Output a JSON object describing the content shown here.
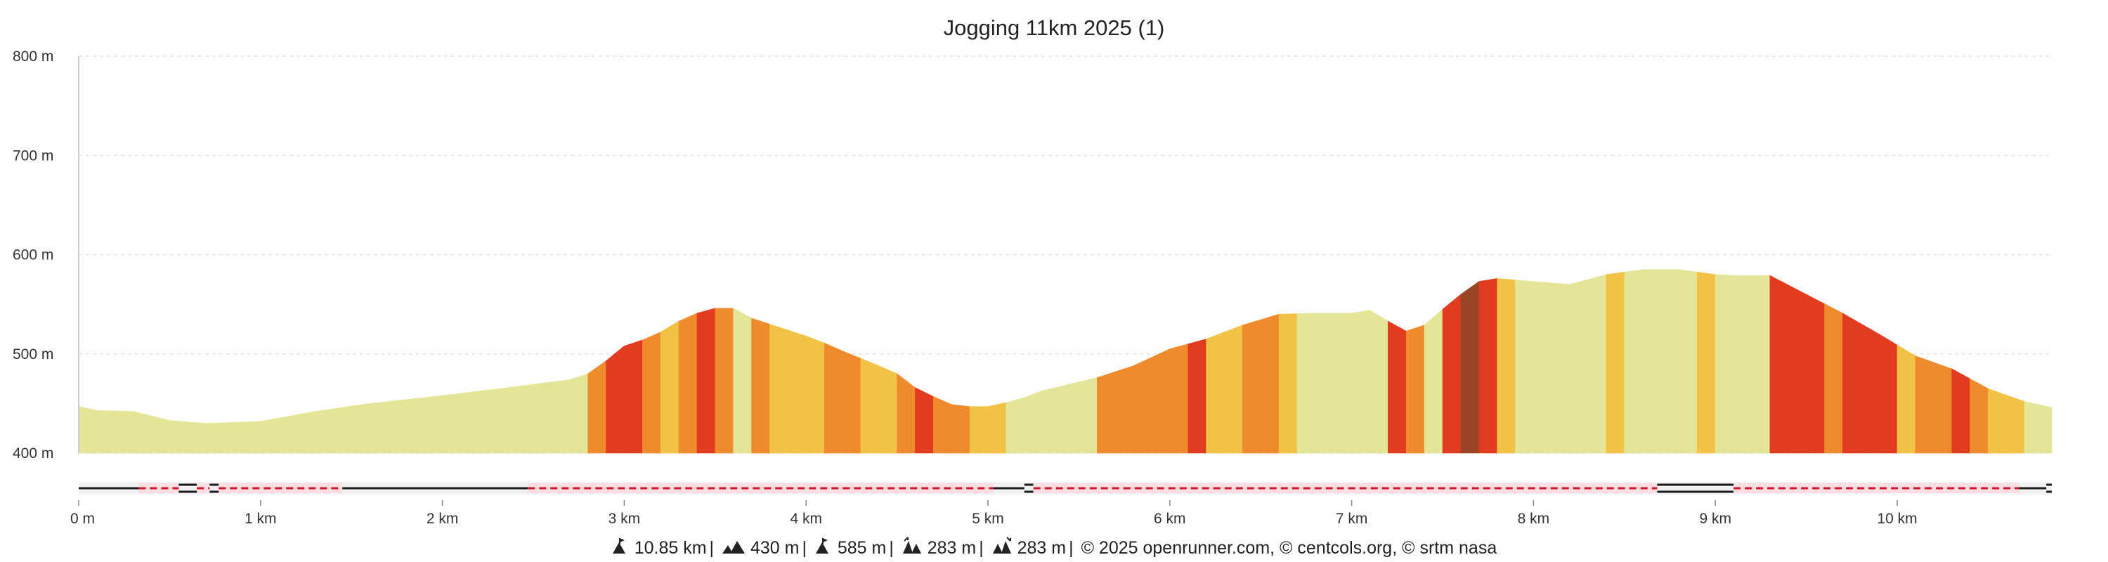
{
  "chart_data": {
    "type": "area",
    "title": "Jogging 11km 2025 (1)",
    "y_ticks": [
      "400 m",
      "500 m",
      "600 m",
      "700 m",
      "800 m"
    ],
    "x_ticks": [
      "0 m",
      "1 km",
      "2 km",
      "3 km",
      "4 km",
      "5 km",
      "6 km",
      "7 km",
      "8 km",
      "9 km",
      "10 km"
    ],
    "ylim": [
      400,
      800
    ],
    "xlim": [
      0,
      10.85
    ],
    "x_unit": "km",
    "y_unit": "m",
    "grid": true,
    "profile": {
      "x": [
        0,
        0.1,
        0.3,
        0.5,
        0.7,
        1.0,
        1.3,
        1.6,
        2.0,
        2.4,
        2.7,
        2.8,
        2.9,
        3.0,
        3.1,
        3.2,
        3.3,
        3.4,
        3.5,
        3.6,
        3.7,
        3.8,
        3.9,
        4.0,
        4.1,
        4.2,
        4.4,
        4.5,
        4.6,
        4.7,
        4.8,
        4.9,
        5.0,
        5.1,
        5.2,
        5.3,
        5.6,
        5.8,
        6.0,
        6.2,
        6.4,
        6.6,
        6.8,
        7.0,
        7.1,
        7.2,
        7.3,
        7.4,
        7.5,
        7.6,
        7.7,
        7.8,
        8.0,
        8.2,
        8.4,
        8.6,
        8.8,
        9.0,
        9.1,
        9.3,
        9.5,
        9.7,
        9.9,
        10.1,
        10.3,
        10.5,
        10.7,
        10.85
      ],
      "elevation": [
        447,
        443,
        442,
        433,
        430,
        432,
        442,
        450,
        458,
        467,
        474,
        480,
        493,
        508,
        514,
        522,
        533,
        541,
        546,
        546,
        536,
        530,
        524,
        518,
        511,
        503,
        488,
        480,
        466,
        457,
        449,
        447,
        447,
        451,
        456,
        463,
        476,
        488,
        505,
        515,
        529,
        540,
        541,
        541,
        544,
        533,
        523,
        529,
        545,
        560,
        573,
        576,
        573,
        570,
        580,
        585,
        585,
        580,
        579,
        579,
        560,
        541,
        520,
        498,
        485,
        465,
        452,
        446
      ]
    },
    "slope_colors": {
      "flat": "#e5e597",
      "gentle": "#f2c244",
      "moderate": "#ef8b2c",
      "steep": "#e33b20",
      "very_steep": "#9a4626"
    },
    "slope_segments": [
      {
        "from": 0,
        "to": 2.8,
        "class": "flat"
      },
      {
        "from": 2.8,
        "to": 2.9,
        "class": "moderate"
      },
      {
        "from": 2.9,
        "to": 3.1,
        "class": "steep"
      },
      {
        "from": 3.1,
        "to": 3.2,
        "class": "moderate"
      },
      {
        "from": 3.2,
        "to": 3.3,
        "class": "gentle"
      },
      {
        "from": 3.3,
        "to": 3.4,
        "class": "moderate"
      },
      {
        "from": 3.4,
        "to": 3.5,
        "class": "steep"
      },
      {
        "from": 3.5,
        "to": 3.6,
        "class": "moderate"
      },
      {
        "from": 3.6,
        "to": 3.7,
        "class": "flat"
      },
      {
        "from": 3.7,
        "to": 3.8,
        "class": "moderate"
      },
      {
        "from": 3.8,
        "to": 4.1,
        "class": "gentle"
      },
      {
        "from": 4.1,
        "to": 4.3,
        "class": "moderate"
      },
      {
        "from": 4.3,
        "to": 4.5,
        "class": "gentle"
      },
      {
        "from": 4.5,
        "to": 4.6,
        "class": "moderate"
      },
      {
        "from": 4.6,
        "to": 4.7,
        "class": "steep"
      },
      {
        "from": 4.7,
        "to": 4.9,
        "class": "moderate"
      },
      {
        "from": 4.9,
        "to": 5.1,
        "class": "gentle"
      },
      {
        "from": 5.1,
        "to": 5.6,
        "class": "flat"
      },
      {
        "from": 5.6,
        "to": 6.1,
        "class": "moderate"
      },
      {
        "from": 6.1,
        "to": 6.2,
        "class": "steep"
      },
      {
        "from": 6.2,
        "to": 6.4,
        "class": "gentle"
      },
      {
        "from": 6.4,
        "to": 6.6,
        "class": "moderate"
      },
      {
        "from": 6.6,
        "to": 6.7,
        "class": "gentle"
      },
      {
        "from": 6.7,
        "to": 7.2,
        "class": "flat"
      },
      {
        "from": 7.2,
        "to": 7.3,
        "class": "steep"
      },
      {
        "from": 7.3,
        "to": 7.4,
        "class": "moderate"
      },
      {
        "from": 7.4,
        "to": 7.5,
        "class": "flat"
      },
      {
        "from": 7.5,
        "to": 7.6,
        "class": "steep"
      },
      {
        "from": 7.6,
        "to": 7.7,
        "class": "very_steep"
      },
      {
        "from": 7.7,
        "to": 7.8,
        "class": "steep"
      },
      {
        "from": 7.8,
        "to": 7.9,
        "class": "gentle"
      },
      {
        "from": 7.9,
        "to": 8.4,
        "class": "flat"
      },
      {
        "from": 8.4,
        "to": 8.5,
        "class": "gentle"
      },
      {
        "from": 8.5,
        "to": 8.9,
        "class": "flat"
      },
      {
        "from": 8.9,
        "to": 9.0,
        "class": "gentle"
      },
      {
        "from": 9.0,
        "to": 9.3,
        "class": "flat"
      },
      {
        "from": 9.3,
        "to": 9.6,
        "class": "steep"
      },
      {
        "from": 9.6,
        "to": 9.7,
        "class": "moderate"
      },
      {
        "from": 9.7,
        "to": 10.0,
        "class": "steep"
      },
      {
        "from": 10.0,
        "to": 10.1,
        "class": "gentle"
      },
      {
        "from": 10.1,
        "to": 10.3,
        "class": "moderate"
      },
      {
        "from": 10.3,
        "to": 10.4,
        "class": "steep"
      },
      {
        "from": 10.4,
        "to": 10.5,
        "class": "moderate"
      },
      {
        "from": 10.5,
        "to": 10.7,
        "class": "gentle"
      },
      {
        "from": 10.7,
        "to": 10.85,
        "class": "flat"
      }
    ],
    "surface_track": [
      {
        "from": 0,
        "to": 0.33,
        "style": "solid"
      },
      {
        "from": 0.33,
        "to": 0.55,
        "style": "dashed"
      },
      {
        "from": 0.55,
        "to": 0.65,
        "style": "double"
      },
      {
        "from": 0.65,
        "to": 0.72,
        "style": "dashed"
      },
      {
        "from": 0.72,
        "to": 0.77,
        "style": "double"
      },
      {
        "from": 0.77,
        "to": 1.45,
        "style": "dashed"
      },
      {
        "from": 1.45,
        "to": 2.47,
        "style": "solid"
      },
      {
        "from": 2.47,
        "to": 5.03,
        "style": "dashed"
      },
      {
        "from": 5.03,
        "to": 5.2,
        "style": "solid"
      },
      {
        "from": 5.2,
        "to": 5.25,
        "style": "double"
      },
      {
        "from": 5.25,
        "to": 8.68,
        "style": "dashed"
      },
      {
        "from": 8.68,
        "to": 9.1,
        "style": "double"
      },
      {
        "from": 9.1,
        "to": 10.67,
        "style": "dashed"
      },
      {
        "from": 10.67,
        "to": 10.82,
        "style": "solid"
      },
      {
        "from": 10.82,
        "to": 10.85,
        "style": "double"
      }
    ]
  },
  "footer": {
    "distance": "10.85 km",
    "elevation_gain": "430 m",
    "max_altitude": "585 m",
    "ascent": "283 m",
    "descent": "283 m",
    "credits": "© 2025 openrunner.com, © centcols.org, © srtm nasa"
  }
}
